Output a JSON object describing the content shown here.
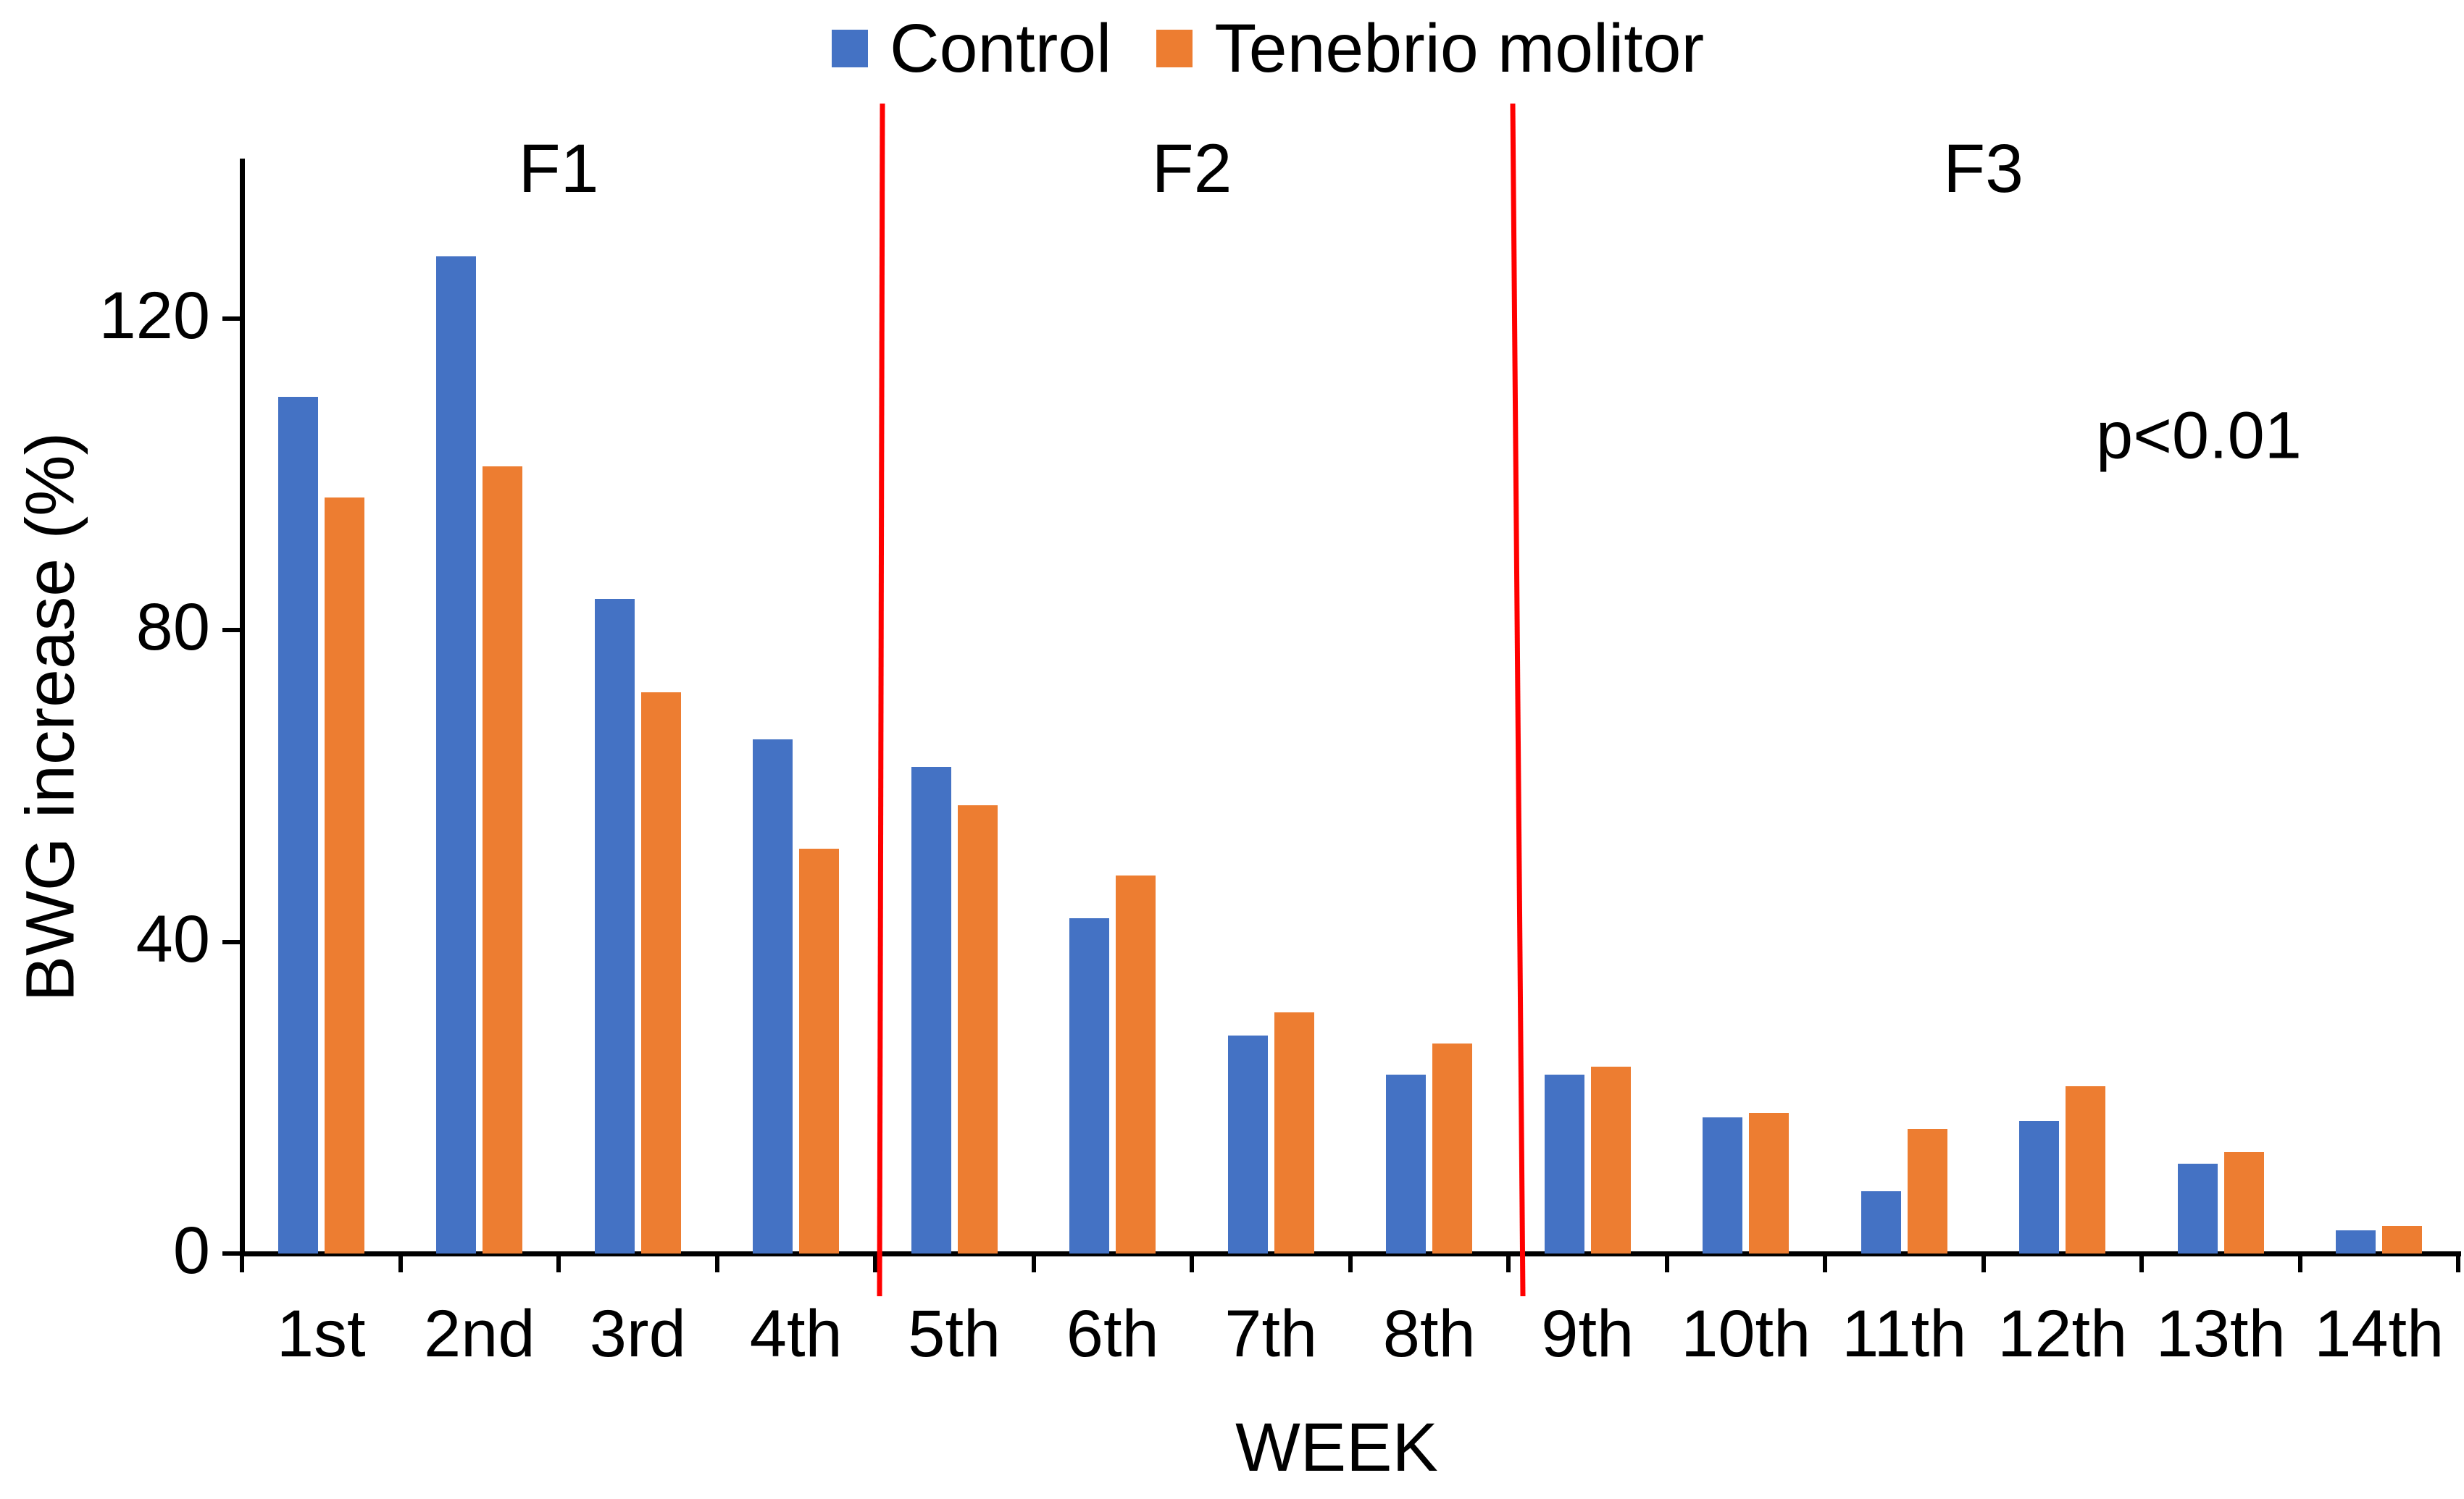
{
  "chart_data": {
    "type": "bar",
    "title": "",
    "categories": [
      "1st",
      "2nd",
      "3rd",
      "4th",
      "5th",
      "6th",
      "7th",
      "8th",
      "9th",
      "10th",
      "11th",
      "12th",
      "13th",
      "14th"
    ],
    "series": [
      {
        "name": "Control",
        "color": "#4472C4",
        "values": [
          110,
          128,
          84,
          66,
          62.5,
          43,
          28,
          23,
          23,
          17.5,
          8,
          17,
          11.5,
          3
        ]
      },
      {
        "name": "Tenebrio molitor",
        "color": "#ED7D31",
        "values": [
          97,
          101,
          72,
          52,
          57.5,
          48.5,
          31,
          27,
          24,
          18,
          16,
          21.5,
          13,
          3.5
        ]
      }
    ],
    "xlabel": "WEEK",
    "ylabel": "BWG increase (%)",
    "yticks": [
      0,
      40,
      80,
      120
    ],
    "ylim": [
      0,
      140
    ],
    "grid": false,
    "legend_position": "top",
    "annotations": {
      "p_value": "p<0.01"
    },
    "sections": [
      {
        "label": "F1",
        "from": "1st",
        "to": "4th"
      },
      {
        "label": "F2",
        "from": "5th",
        "to": "8th"
      },
      {
        "label": "F3",
        "from": "9th",
        "to": "14th"
      }
    ],
    "separators_after": [
      "4th",
      "8th"
    ],
    "separator_color": "#FF0000",
    "axis_color": "#000000",
    "text_color": "#000000"
  }
}
